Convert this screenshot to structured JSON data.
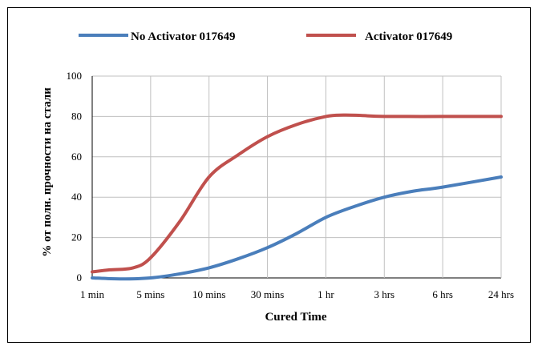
{
  "chart_data": {
    "type": "line",
    "title": "",
    "xlabel": "Cured Time",
    "ylabel": "% от полн. прочности на стали",
    "categories": [
      "1 min",
      "5 mins",
      "10 mins",
      "30 mins",
      "1 hr",
      "3 hrs",
      "6 hrs",
      "24 hrs"
    ],
    "ylim": [
      0,
      100
    ],
    "yticks": [
      0,
      20,
      40,
      60,
      80,
      100
    ],
    "grid": true,
    "legend": "top",
    "series": [
      {
        "name": "No Activator 017649",
        "color": "#4a7ebb",
        "points": [
          [
            0,
            0
          ],
          [
            0.5,
            -0.5
          ],
          [
            1,
            0
          ],
          [
            1.5,
            2
          ],
          [
            2,
            5
          ],
          [
            2.5,
            9.5
          ],
          [
            3,
            15
          ],
          [
            3.5,
            22
          ],
          [
            4,
            30
          ],
          [
            4.5,
            35.5
          ],
          [
            5,
            40
          ],
          [
            5.5,
            43
          ],
          [
            6,
            45
          ],
          [
            7,
            50
          ]
        ]
      },
      {
        "name": "Activator 017649",
        "color": "#c0504d",
        "points": [
          [
            0,
            3
          ],
          [
            0.3,
            4
          ],
          [
            0.7,
            5
          ],
          [
            1,
            10
          ],
          [
            1.5,
            28
          ],
          [
            2,
            50
          ],
          [
            2.5,
            61
          ],
          [
            3,
            70
          ],
          [
            3.5,
            76
          ],
          [
            4,
            80
          ],
          [
            4.3,
            80.7
          ],
          [
            4.6,
            80.5
          ],
          [
            5,
            80
          ],
          [
            6,
            80
          ],
          [
            7,
            80
          ]
        ]
      }
    ]
  }
}
